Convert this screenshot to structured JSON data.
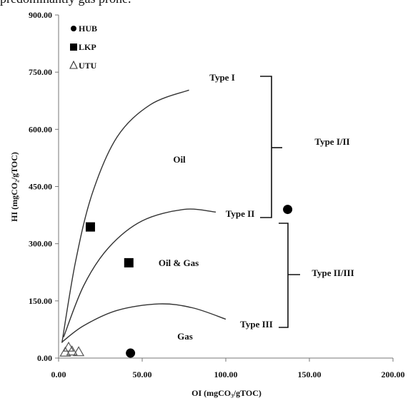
{
  "caption_fragment": "predominantly gas prone.",
  "chart_data": {
    "type": "scatter",
    "xlabel": "OI (mgCO₃/gTOC)",
    "ylabel": "HI (mgCO₂/gTOC)",
    "xlim": [
      0,
      200
    ],
    "ylim": [
      0,
      900
    ],
    "x_ticks": [
      "0.00",
      "50.00",
      "100.00",
      "150.00",
      "200.00"
    ],
    "y_ticks": [
      "0.00",
      "150.00",
      "300.00",
      "450.00",
      "600.00",
      "750.00",
      "900.00"
    ],
    "grid": false,
    "legend_position": "top-left",
    "series": [
      {
        "name": "HUB",
        "marker": "circle",
        "color": "#000000",
        "points": [
          [
            43,
            13
          ],
          [
            137,
            390
          ]
        ]
      },
      {
        "name": "LKP",
        "marker": "square",
        "color": "#000000",
        "points": [
          [
            19,
            344
          ],
          [
            42,
            250
          ]
        ]
      },
      {
        "name": "UTU",
        "marker": "triangle-open",
        "color": "#000000",
        "points": [
          [
            6,
            28
          ],
          [
            8,
            18
          ],
          [
            12,
            16
          ],
          [
            4,
            15
          ]
        ]
      }
    ],
    "curves": [
      {
        "name": "Type I",
        "points": [
          [
            2,
            40
          ],
          [
            10,
            250
          ],
          [
            20,
            430
          ],
          [
            35,
            580
          ],
          [
            55,
            665
          ],
          [
            78,
            703
          ]
        ]
      },
      {
        "name": "Type II",
        "points": [
          [
            3,
            55
          ],
          [
            15,
            190
          ],
          [
            30,
            290
          ],
          [
            50,
            360
          ],
          [
            75,
            390
          ],
          [
            94,
            383
          ]
        ]
      },
      {
        "name": "Type III",
        "points": [
          [
            2,
            42
          ],
          [
            15,
            85
          ],
          [
            35,
            125
          ],
          [
            60,
            142
          ],
          [
            80,
            132
          ],
          [
            100,
            102
          ]
        ]
      }
    ],
    "region_labels": [
      "Oil",
      "Oil & Gas",
      "Gas"
    ],
    "curve_labels": [
      "Type I",
      "Type II",
      "Type III"
    ],
    "bracket_labels": [
      "Type I/II",
      "Type II/III"
    ]
  }
}
